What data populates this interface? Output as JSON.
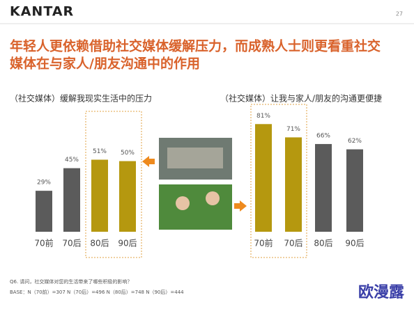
{
  "slide": {
    "logo": "KANTAR",
    "page_number": "27",
    "title_lines": [
      "年轻人更依赖借助社交媒体缓解压力，而成熟人士则更看重社交",
      "媒体在与家人/朋友沟通中的作用"
    ],
    "question": "Q6. 请问，社交媒体对您的生活带来了哪些积极的影响？",
    "base": "BASE：N（70前）=307    N（70后）=496    N（80后）=748    N（90后）=444",
    "watermark": "欧漫露"
  },
  "chart_data": [
    {
      "type": "bar",
      "title": "（社交媒体）缓解我现实生活中的压力",
      "categories": [
        "70前",
        "70后",
        "80后",
        "90后"
      ],
      "values": [
        29,
        45,
        51,
        50
      ],
      "value_labels": [
        "29%",
        "45%",
        "51%",
        "50%"
      ],
      "colors": [
        "#5b5b5b",
        "#5b5b5b",
        "#b5980f",
        "#b5980f"
      ]
    },
    {
      "type": "bar",
      "title": "（社交媒体）让我与家人/朋友的沟通更便捷",
      "categories": [
        "70前",
        "70后",
        "80后",
        "90后"
      ],
      "values": [
        81,
        71,
        66,
        62
      ],
      "value_labels": [
        "81%",
        "71%",
        "66%",
        "62%"
      ],
      "colors": [
        "#b5980f",
        "#b5980f",
        "#5b5b5b",
        "#5b5b5b"
      ]
    }
  ]
}
